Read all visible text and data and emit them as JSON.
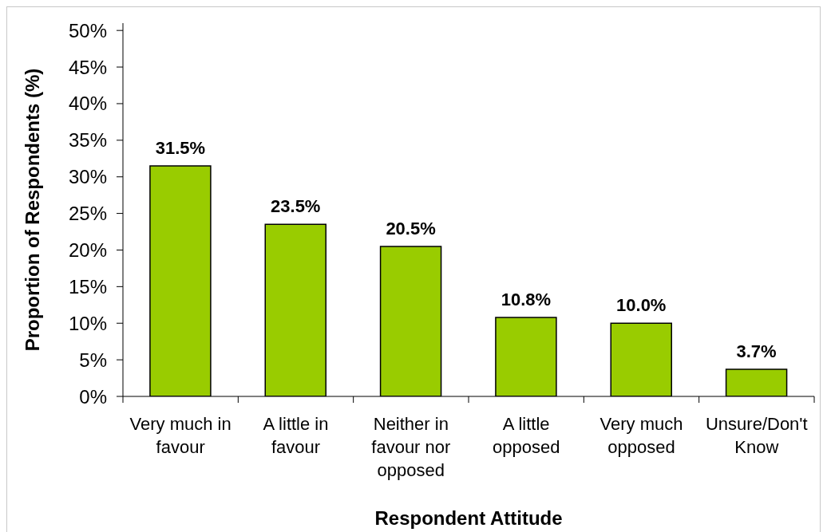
{
  "chart_data": {
    "type": "bar",
    "xlabel": "Respondent Attitude",
    "ylabel": "Proportion of Respondents (%)",
    "categories": [
      "Very much in favour",
      "A little in favour",
      "Neither in favour nor opposed",
      "A little opposed",
      "Very much opposed",
      "Unsure/Don't Know"
    ],
    "values": [
      31.5,
      23.5,
      20.5,
      10.8,
      10.0,
      3.7
    ],
    "value_labels": [
      "31.5%",
      "23.5%",
      "20.5%",
      "10.8%",
      "10.0%",
      "3.7%"
    ],
    "color": "#99cc00",
    "ylim": [
      0,
      51
    ],
    "yticks": [
      {
        "value": 0,
        "label": "0%"
      },
      {
        "value": 5,
        "label": "5%"
      },
      {
        "value": 10,
        "label": "10%"
      },
      {
        "value": 15,
        "label": "15%"
      },
      {
        "value": 20,
        "label": "20%"
      },
      {
        "value": 25,
        "label": "25%"
      },
      {
        "value": 30,
        "label": "30%"
      },
      {
        "value": 35,
        "label": "35%"
      },
      {
        "value": 40,
        "label": "40%"
      },
      {
        "value": 45,
        "label": "45%"
      },
      {
        "value": 50,
        "label": "50%"
      }
    ]
  }
}
